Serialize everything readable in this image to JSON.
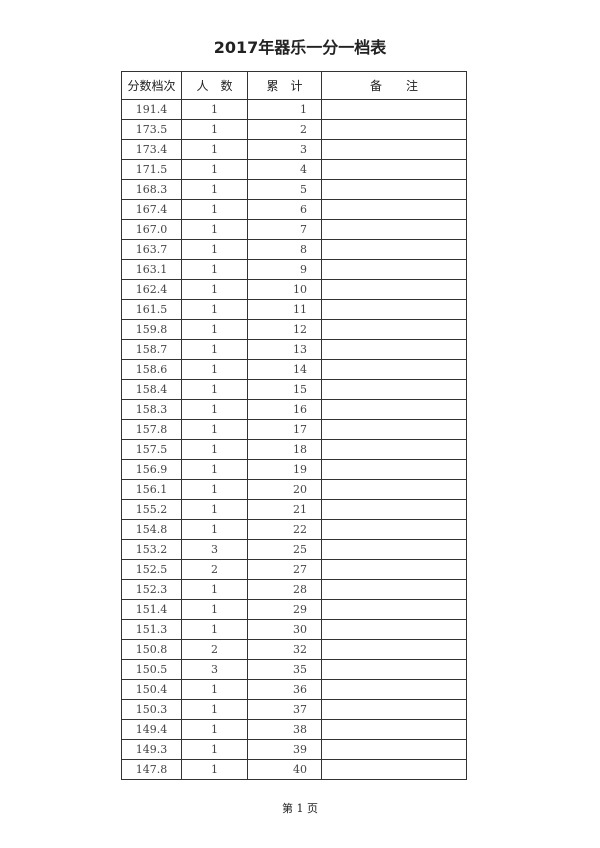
{
  "title": "2017年器乐一分一档表",
  "table": {
    "headers": [
      "分数档次",
      "人　数",
      "累　计",
      "备　　注"
    ],
    "rows": [
      [
        "191.4",
        "1",
        "1",
        ""
      ],
      [
        "173.5",
        "1",
        "2",
        ""
      ],
      [
        "173.4",
        "1",
        "3",
        ""
      ],
      [
        "171.5",
        "1",
        "4",
        ""
      ],
      [
        "168.3",
        "1",
        "5",
        ""
      ],
      [
        "167.4",
        "1",
        "6",
        ""
      ],
      [
        "167.0",
        "1",
        "7",
        ""
      ],
      [
        "163.7",
        "1",
        "8",
        ""
      ],
      [
        "163.1",
        "1",
        "9",
        ""
      ],
      [
        "162.4",
        "1",
        "10",
        ""
      ],
      [
        "161.5",
        "1",
        "11",
        ""
      ],
      [
        "159.8",
        "1",
        "12",
        ""
      ],
      [
        "158.7",
        "1",
        "13",
        ""
      ],
      [
        "158.6",
        "1",
        "14",
        ""
      ],
      [
        "158.4",
        "1",
        "15",
        ""
      ],
      [
        "158.3",
        "1",
        "16",
        ""
      ],
      [
        "157.8",
        "1",
        "17",
        ""
      ],
      [
        "157.5",
        "1",
        "18",
        ""
      ],
      [
        "156.9",
        "1",
        "19",
        ""
      ],
      [
        "156.1",
        "1",
        "20",
        ""
      ],
      [
        "155.2",
        "1",
        "21",
        ""
      ],
      [
        "154.8",
        "1",
        "22",
        ""
      ],
      [
        "153.2",
        "3",
        "25",
        ""
      ],
      [
        "152.5",
        "2",
        "27",
        ""
      ],
      [
        "152.3",
        "1",
        "28",
        ""
      ],
      [
        "151.4",
        "1",
        "29",
        ""
      ],
      [
        "151.3",
        "1",
        "30",
        ""
      ],
      [
        "150.8",
        "2",
        "32",
        ""
      ],
      [
        "150.5",
        "3",
        "35",
        ""
      ],
      [
        "150.4",
        "1",
        "36",
        ""
      ],
      [
        "150.3",
        "1",
        "37",
        ""
      ],
      [
        "149.4",
        "1",
        "38",
        ""
      ],
      [
        "149.3",
        "1",
        "39",
        ""
      ],
      [
        "147.8",
        "1",
        "40",
        ""
      ]
    ]
  },
  "footer": {
    "page_label": "第 1 页"
  }
}
